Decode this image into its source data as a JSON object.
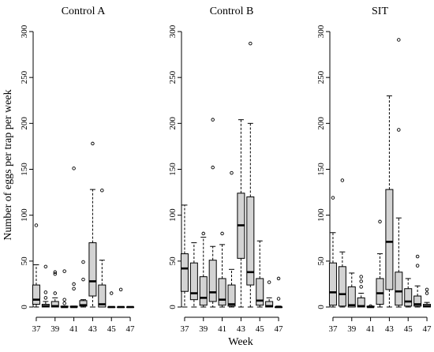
{
  "figure": {
    "ylabel": "Number of eggs per trap per week",
    "xlabel": "Week"
  },
  "chart_data": [
    {
      "type": "boxplot",
      "title": "Control A",
      "xlabel": "Week",
      "ylabel": "Number of eggs per trap per week",
      "ylim": [
        0,
        300
      ],
      "yticks": [
        0,
        50,
        100,
        150,
        200,
        250,
        300
      ],
      "xticks": [
        37,
        39,
        41,
        43,
        45,
        47
      ],
      "categories": [
        37,
        38,
        39,
        40,
        41,
        42,
        43,
        44,
        45,
        46,
        47
      ],
      "boxes": [
        {
          "week": 37,
          "min": 0,
          "q1": 3,
          "median": 8,
          "q3": 24,
          "max": 46,
          "outliers": [
            89
          ]
        },
        {
          "week": 38,
          "min": 0,
          "q1": 0,
          "median": 1,
          "q3": 3,
          "max": 6,
          "outliers": [
            10,
            16,
            44
          ]
        },
        {
          "week": 39,
          "min": 0,
          "q1": 0,
          "median": 1,
          "q3": 6,
          "max": 10,
          "outliers": [
            15,
            36,
            38
          ]
        },
        {
          "week": 40,
          "min": 0,
          "q1": 0,
          "median": 0,
          "q3": 1,
          "max": 1,
          "outliers": [
            4,
            8,
            39
          ]
        },
        {
          "week": 41,
          "min": 0,
          "q1": 0,
          "median": 0,
          "q3": 1,
          "max": 1,
          "outliers": [
            20,
            25,
            151
          ]
        },
        {
          "week": 42,
          "min": 0,
          "q1": 1,
          "median": 2,
          "q3": 7,
          "max": 8,
          "outliers": [
            30,
            49
          ]
        },
        {
          "week": 43,
          "min": 0,
          "q1": 12,
          "median": 28,
          "q3": 70,
          "max": 128,
          "outliers": [
            178
          ]
        },
        {
          "week": 44,
          "min": 0,
          "q1": 0,
          "median": 3,
          "q3": 24,
          "max": 51,
          "outliers": [
            127
          ]
        },
        {
          "week": 45,
          "min": 0,
          "q1": 0,
          "median": 0,
          "q3": 0,
          "max": 0,
          "outliers": [
            15
          ]
        },
        {
          "week": 46,
          "min": 0,
          "q1": 0,
          "median": 0,
          "q3": 0,
          "max": 0,
          "outliers": [
            19
          ]
        },
        {
          "week": 47,
          "min": 0,
          "q1": 0,
          "median": 0,
          "q3": 0,
          "max": 0,
          "outliers": []
        }
      ]
    },
    {
      "type": "boxplot",
      "title": "Control B",
      "xlabel": "Week",
      "ylim": [
        0,
        300
      ],
      "yticks": [
        0,
        50,
        100,
        150,
        200,
        250,
        300
      ],
      "xticks": [
        37,
        39,
        41,
        43,
        45,
        47
      ],
      "categories": [
        37,
        38,
        39,
        40,
        41,
        42,
        43,
        44,
        45,
        46,
        47
      ],
      "boxes": [
        {
          "week": 37,
          "min": 0,
          "q1": 17,
          "median": 42,
          "q3": 58,
          "max": 111,
          "outliers": []
        },
        {
          "week": 38,
          "min": 0,
          "q1": 8,
          "median": 15,
          "q3": 48,
          "max": 70,
          "outliers": []
        },
        {
          "week": 39,
          "min": 0,
          "q1": 2,
          "median": 10,
          "q3": 33,
          "max": 76,
          "outliers": [
            80
          ]
        },
        {
          "week": 40,
          "min": 0,
          "q1": 6,
          "median": 16,
          "q3": 51,
          "max": 66,
          "outliers": [
            152,
            204
          ]
        },
        {
          "week": 41,
          "min": 0,
          "q1": 2,
          "median": 8,
          "q3": 31,
          "max": 68,
          "outliers": [
            80
          ]
        },
        {
          "week": 42,
          "min": 0,
          "q1": 1,
          "median": 3,
          "q3": 24,
          "max": 41,
          "outliers": [
            146
          ]
        },
        {
          "week": 43,
          "min": 0,
          "q1": 53,
          "median": 89,
          "q3": 124,
          "max": 204,
          "outliers": []
        },
        {
          "week": 44,
          "min": 0,
          "q1": 24,
          "median": 38,
          "q3": 120,
          "max": 200,
          "outliers": [
            287
          ]
        },
        {
          "week": 45,
          "min": 0,
          "q1": 2,
          "median": 7,
          "q3": 31,
          "max": 72,
          "outliers": []
        },
        {
          "week": 46,
          "min": 0,
          "q1": 0,
          "median": 1,
          "q3": 6,
          "max": 10,
          "outliers": [
            27
          ]
        },
        {
          "week": 47,
          "min": 0,
          "q1": 0,
          "median": 0,
          "q3": 0,
          "max": 1,
          "outliers": [
            9,
            31
          ]
        }
      ]
    },
    {
      "type": "boxplot",
      "title": "SIT",
      "xlabel": "Week",
      "ylim": [
        0,
        300
      ],
      "yticks": [
        0,
        50,
        100,
        150,
        200,
        250,
        300
      ],
      "xticks": [
        37,
        39,
        41,
        43,
        45,
        47
      ],
      "categories": [
        37,
        38,
        39,
        40,
        41,
        42,
        43,
        44,
        45,
        46,
        47
      ],
      "boxes": [
        {
          "week": 37,
          "min": 0,
          "q1": 2,
          "median": 16,
          "q3": 48,
          "max": 81,
          "outliers": [
            119
          ]
        },
        {
          "week": 38,
          "min": 0,
          "q1": 1,
          "median": 14,
          "q3": 44,
          "max": 60,
          "outliers": [
            138
          ]
        },
        {
          "week": 39,
          "min": 0,
          "q1": 0,
          "median": 2,
          "q3": 22,
          "max": 37,
          "outliers": []
        },
        {
          "week": 40,
          "min": 0,
          "q1": 0,
          "median": 1,
          "q3": 10,
          "max": 15,
          "outliers": [
            22,
            28,
            33
          ]
        },
        {
          "week": 41,
          "min": 0,
          "q1": 0,
          "median": 0,
          "q3": 1,
          "max": 1,
          "outliers": [
            1
          ]
        },
        {
          "week": 42,
          "min": 0,
          "q1": 3,
          "median": 15,
          "q3": 31,
          "max": 58,
          "outliers": [
            93
          ]
        },
        {
          "week": 43,
          "min": 0,
          "q1": 19,
          "median": 71,
          "q3": 128,
          "max": 230,
          "outliers": []
        },
        {
          "week": 44,
          "min": 0,
          "q1": 2,
          "median": 17,
          "q3": 38,
          "max": 97,
          "outliers": [
            193,
            291
          ]
        },
        {
          "week": 45,
          "min": 0,
          "q1": 1,
          "median": 6,
          "q3": 20,
          "max": 31,
          "outliers": []
        },
        {
          "week": 46,
          "min": 0,
          "q1": 1,
          "median": 3,
          "q3": 12,
          "max": 23,
          "outliers": [
            45,
            55
          ]
        },
        {
          "week": 47,
          "min": 0,
          "q1": 0,
          "median": 1,
          "q3": 3,
          "max": 5,
          "outliers": [
            15,
            19
          ]
        }
      ]
    }
  ]
}
